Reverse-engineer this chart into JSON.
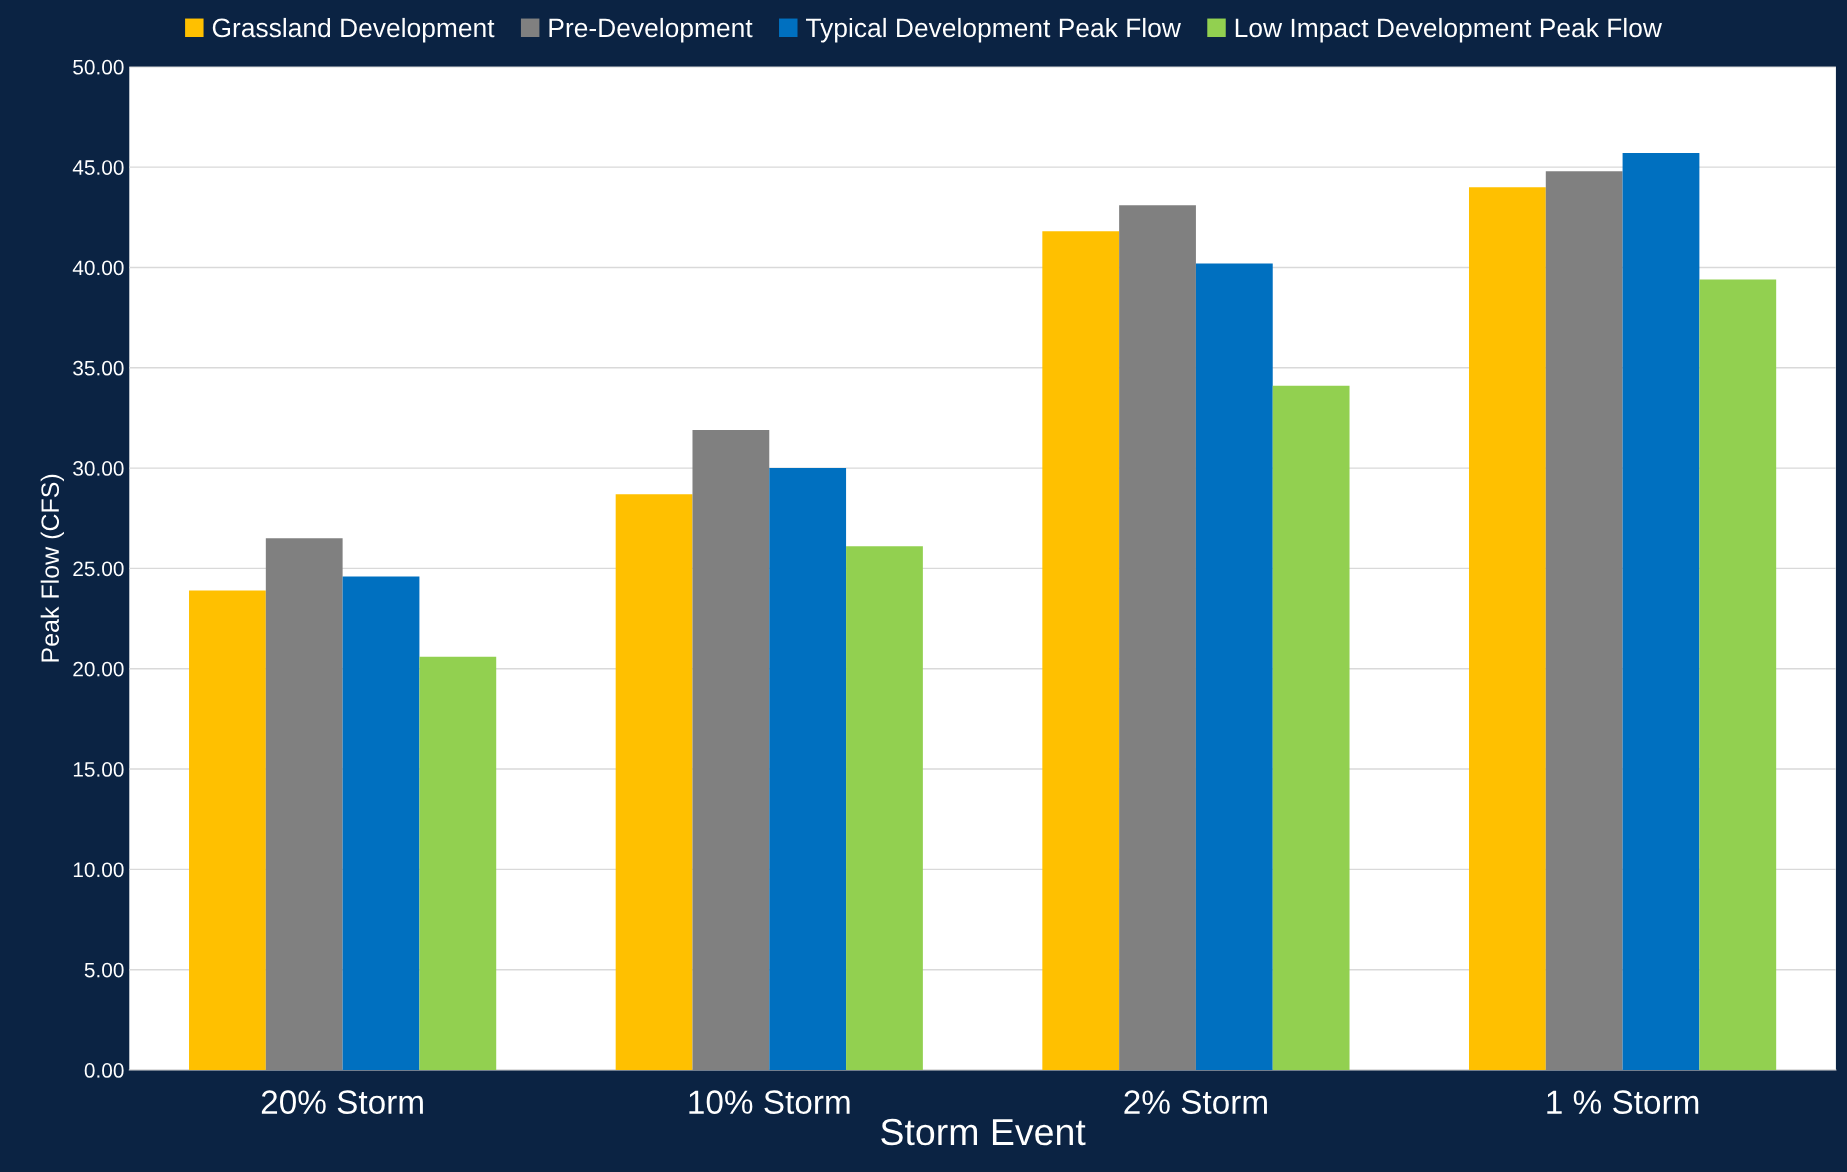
{
  "chart_data": {
    "type": "bar",
    "xlabel": "Storm Event",
    "ylabel": "Peak Flow (CFS)",
    "categories": [
      "20% Storm",
      "10% Storm",
      "2% Storm",
      "1 % Storm"
    ],
    "series": [
      {
        "name": "Grassland Development",
        "color": "#ffc000",
        "values": [
          23.9,
          28.7,
          41.8,
          44.0
        ]
      },
      {
        "name": "Pre-Development",
        "color": "#808080",
        "values": [
          26.5,
          31.9,
          43.1,
          44.8
        ]
      },
      {
        "name": "Typical Development Peak Flow",
        "color": "#0070c0",
        "values": [
          24.6,
          30.0,
          40.2,
          45.7
        ]
      },
      {
        "name": "Low Impact Development Peak Flow",
        "color": "#92d050",
        "values": [
          20.6,
          26.1,
          34.1,
          39.4
        ]
      }
    ],
    "ylim": [
      0,
      50
    ],
    "yticks": [
      {
        "value": 0,
        "label": "0.00"
      },
      {
        "value": 5,
        "label": "5.00"
      },
      {
        "value": 10,
        "label": "10.00"
      },
      {
        "value": 15,
        "label": "15.00"
      },
      {
        "value": 20,
        "label": "20.00"
      },
      {
        "value": 25,
        "label": "25.00"
      },
      {
        "value": 30,
        "label": "30.00"
      },
      {
        "value": 35,
        "label": "35.00"
      },
      {
        "value": 40,
        "label": "40.00"
      },
      {
        "value": 45,
        "label": "45.00"
      },
      {
        "value": 50,
        "label": "50.00"
      }
    ],
    "grid": "y",
    "legend": "top"
  }
}
